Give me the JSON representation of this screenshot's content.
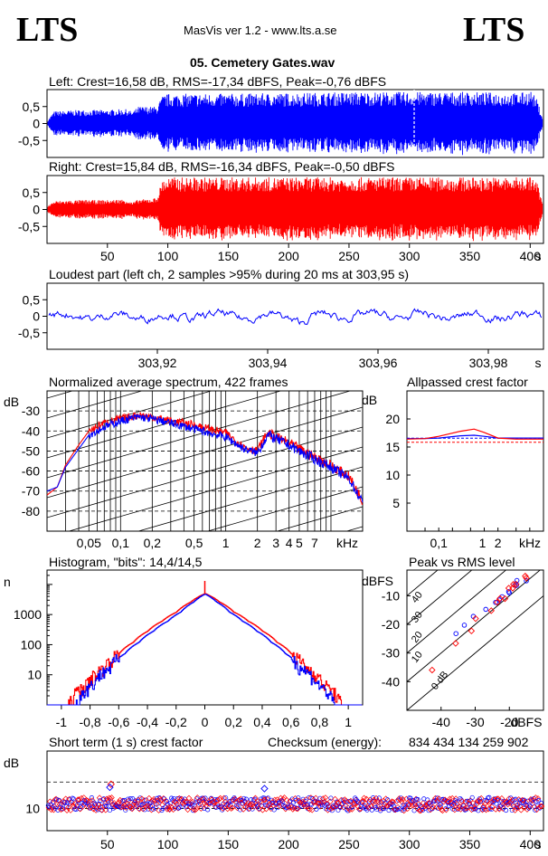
{
  "header": {
    "logo_left": "LTS",
    "logo_right": "LTS",
    "app_title": "MasVis ver 1.2 - www.lts.a.se",
    "file_title": "05. Cemetery Gates.wav"
  },
  "colors": {
    "left": "#0000ff",
    "right": "#ff0000",
    "axis": "#000000"
  },
  "chart_data": [
    {
      "id": "left_wave",
      "type": "area",
      "title": "Left: Crest=16,58 dB, RMS=-17,34 dBFS, Peak=-0,76 dBFS",
      "yticks": [
        "0,5",
        "0",
        "-0,5"
      ],
      "ylim": [
        -1,
        1
      ],
      "xlim": [
        0,
        411
      ],
      "envelope": {
        "x": [
          0,
          5,
          25,
          50,
          60,
          65,
          70,
          75,
          80,
          90,
          95,
          100,
          150,
          200,
          250,
          300,
          350,
          390,
          400,
          405,
          411
        ],
        "y": [
          0.1,
          0.36,
          0.4,
          0.4,
          0.42,
          0.42,
          0.35,
          0.5,
          0.5,
          0.5,
          0.82,
          0.88,
          0.88,
          0.9,
          0.93,
          0.93,
          0.93,
          0.9,
          0.97,
          0.7,
          0.0
        ]
      },
      "peak_marker_x": 303.95
    },
    {
      "id": "right_wave",
      "type": "area",
      "title": "Right: Crest=15,84 dB, RMS=-16,34 dBFS, Peak=-0,50 dBFS",
      "yticks": [
        "0,5",
        "0",
        "-0,5"
      ],
      "ylim": [
        -1,
        1
      ],
      "xlim": [
        0,
        411
      ],
      "xticks": [
        "50",
        "100",
        "150",
        "200",
        "250",
        "300",
        "350",
        "400"
      ],
      "xtick_values": [
        50,
        100,
        150,
        200,
        250,
        300,
        350,
        400
      ],
      "xunit": "s",
      "envelope": {
        "x": [
          0,
          5,
          25,
          50,
          60,
          65,
          70,
          75,
          80,
          90,
          95,
          100,
          150,
          200,
          250,
          300,
          350,
          390,
          400,
          405,
          411
        ],
        "y": [
          0.1,
          0.25,
          0.28,
          0.28,
          0.3,
          0.3,
          0.2,
          0.3,
          0.3,
          0.35,
          0.9,
          0.95,
          0.95,
          0.95,
          0.95,
          0.95,
          0.95,
          0.95,
          0.98,
          0.8,
          0.0
        ]
      }
    },
    {
      "id": "loudest",
      "type": "line",
      "title": "Loudest part (left  ch, 2 samples >95% during 20 ms at 303,95 s)",
      "yticks": [
        "0,5",
        "0",
        "-0,5"
      ],
      "ylim": [
        -1,
        1
      ],
      "xlim": [
        303.9,
        303.99
      ],
      "xticks": [
        "303,92",
        "303,94",
        "303,96",
        "303,98"
      ],
      "xtick_values": [
        303.92,
        303.94,
        303.96,
        303.98
      ],
      "xunit": "s"
    },
    {
      "id": "spectrum",
      "type": "line",
      "title": "Normalized average spectrum, 422 frames",
      "ylabel": "dB",
      "yticks": [
        "-30",
        "-40",
        "-50",
        "-60",
        "-70",
        "-80"
      ],
      "ytick_values": [
        -30,
        -40,
        -50,
        -60,
        -70,
        -80
      ],
      "ylim": [
        -90,
        -20
      ],
      "xscale": "log",
      "xticks": [
        "0,05",
        "0,1",
        "0,2",
        "0,5",
        "1",
        "2",
        "3",
        "4",
        "5",
        "7"
      ],
      "xtick_values": [
        0.05,
        0.1,
        0.2,
        0.5,
        1,
        2,
        3,
        4,
        5,
        7
      ],
      "xunit": "kHz",
      "series": [
        {
          "color": "#ff0000",
          "x": [
            0.02,
            0.025,
            0.03,
            0.04,
            0.05,
            0.07,
            0.1,
            0.15,
            0.2,
            0.3,
            0.5,
            0.7,
            1,
            1.5,
            2,
            2.5,
            3,
            4,
            5,
            7,
            10,
            15,
            20
          ],
          "y": [
            -72,
            -68,
            -57,
            -47,
            -40,
            -36,
            -34,
            -32,
            -33,
            -35,
            -37,
            -39,
            -41,
            -48,
            -50,
            -41,
            -43,
            -46,
            -49,
            -53,
            -57,
            -63,
            -75
          ]
        },
        {
          "color": "#0000ff",
          "x": [
            0.02,
            0.025,
            0.03,
            0.04,
            0.05,
            0.07,
            0.1,
            0.15,
            0.2,
            0.3,
            0.5,
            0.7,
            1,
            1.5,
            2,
            2.5,
            3,
            4,
            5,
            7,
            10,
            15,
            20
          ],
          "y": [
            -70,
            -68,
            -58,
            -49,
            -42,
            -38,
            -35,
            -33,
            -34,
            -36,
            -39,
            -41,
            -43,
            -49,
            -51,
            -42,
            -44,
            -47,
            -50,
            -54,
            -58,
            -64,
            -76
          ]
        }
      ]
    },
    {
      "id": "crest_factor",
      "type": "line",
      "title": "Allpassed crest factor",
      "ylabel": "dB",
      "yticks": [
        "20",
        "15",
        "10",
        "5"
      ],
      "ytick_values": [
        20,
        15,
        10,
        5
      ],
      "ylim": [
        0,
        25
      ],
      "xscale": "log",
      "xticks": [
        "0,1",
        "1",
        "2",
        "kHz"
      ],
      "xtick_values": [
        0.1,
        1,
        2
      ],
      "series": [
        {
          "color": "#0000ff",
          "x": [
            0.02,
            0.05,
            0.1,
            0.3,
            0.6,
            1,
            2,
            5,
            20
          ],
          "y": [
            16.5,
            16.5,
            16.6,
            17.0,
            17.1,
            16.9,
            16.6,
            16.6,
            16.6
          ]
        },
        {
          "color": "#ff0000",
          "x": [
            0.02,
            0.05,
            0.1,
            0.3,
            0.6,
            1,
            2,
            5,
            20
          ],
          "y": [
            16.4,
            16.5,
            16.9,
            17.8,
            18.2,
            17.6,
            16.6,
            16.4,
            16.4
          ]
        }
      ],
      "ref_lines": [
        {
          "color": "#0000ff",
          "y": 16.58
        },
        {
          "color": "#ff0000",
          "y": 15.84
        }
      ]
    },
    {
      "id": "histogram",
      "type": "line",
      "title": "Histogram, \"bits\": 14,4/14,5",
      "ylabel": "n",
      "yscale": "log",
      "yticks": [
        "1000",
        "100",
        "10"
      ],
      "ytick_values": [
        1000,
        100,
        10
      ],
      "ylim": [
        1,
        30000
      ],
      "xlim": [
        -1.1,
        1.1
      ],
      "xticks": [
        "-1",
        "-0,8",
        "-0,6",
        "-0,4",
        "-0,2",
        "0",
        "0,2",
        "0,4",
        "0,6",
        "0,8",
        "1"
      ],
      "xtick_values": [
        -1,
        -0.8,
        -0.6,
        -0.4,
        -0.2,
        0,
        0.2,
        0.4,
        0.6,
        0.8,
        1
      ],
      "series": [
        {
          "color": "#ff0000",
          "x": [
            -0.95,
            -0.82,
            -0.7,
            -0.6,
            -0.5,
            -0.4,
            -0.3,
            -0.2,
            -0.1,
            0,
            0.1,
            0.2,
            0.3,
            0.4,
            0.5,
            0.6,
            0.7,
            0.82,
            0.95
          ],
          "y": [
            1,
            5,
            18,
            50,
            120,
            280,
            600,
            1200,
            2600,
            5000,
            2600,
            1200,
            600,
            280,
            120,
            50,
            18,
            5,
            1
          ]
        },
        {
          "color": "#0000ff",
          "x": [
            -0.9,
            -0.78,
            -0.66,
            -0.56,
            -0.46,
            -0.36,
            -0.26,
            -0.17,
            -0.08,
            0,
            0.08,
            0.17,
            0.26,
            0.36,
            0.46,
            0.56,
            0.66,
            0.78,
            0.9
          ],
          "y": [
            1,
            5,
            18,
            50,
            120,
            280,
            600,
            1200,
            2600,
            4800,
            2600,
            1200,
            600,
            280,
            120,
            50,
            18,
            5,
            1
          ]
        }
      ]
    },
    {
      "id": "peak_rms",
      "type": "scatter",
      "title": "Peak vs RMS level",
      "ylabel": "dBFS",
      "xunit": "dBFS",
      "yticks": [
        "-10",
        "-20",
        "-30",
        "-40"
      ],
      "ytick_values": [
        -10,
        -20,
        -30,
        -40
      ],
      "xticks": [
        "-40",
        "-30",
        "-20"
      ],
      "xtick_values": [
        -40,
        -30,
        -20
      ],
      "xlim": [
        -50,
        -10
      ],
      "ylim": [
        -50,
        -1
      ],
      "diagonals": [
        "40",
        "30",
        "20",
        "10",
        "0 dB"
      ],
      "diagonal_values": [
        40,
        30,
        20,
        10,
        0
      ],
      "series": [
        {
          "color": "#0000ff",
          "x": [
            -16,
            -17,
            -18,
            -19,
            -20,
            -21,
            -22,
            -23,
            -25,
            -27,
            -30,
            -33,
            -36
          ],
          "y": [
            -4,
            -5,
            -6,
            -7,
            -8,
            -9,
            -10,
            -11,
            -13,
            -15,
            -18,
            -21,
            -24
          ]
        },
        {
          "color": "#ff0000",
          "x": [
            -15,
            -16,
            -17,
            -18,
            -19,
            -20,
            -21,
            -22,
            -24,
            -26,
            -29,
            -32,
            -35,
            -42
          ],
          "y": [
            -3,
            -4,
            -5,
            -6,
            -7,
            -8,
            -10,
            -11,
            -13,
            -15,
            -18,
            -22,
            -26,
            -35
          ]
        }
      ]
    },
    {
      "id": "short_term_crest",
      "type": "scatter",
      "title": "Short term (1 s) crest factor",
      "ylabel": "dB",
      "checksum_label": "Checksum (energy):",
      "checksum_value": "834 434 134 259 902",
      "yticks": [
        "10"
      ],
      "ytick_values": [
        10
      ],
      "ylim": [
        5,
        23
      ],
      "xlim": [
        0,
        411
      ],
      "xticks": [
        "50",
        "100",
        "150",
        "200",
        "250",
        "300",
        "350",
        "400"
      ],
      "xtick_values": [
        50,
        100,
        150,
        200,
        250,
        300,
        350,
        400
      ],
      "xunit": "s",
      "mean_level": 11,
      "spread": 1.5,
      "outliers": [
        {
          "x": 53,
          "y": 15.5,
          "color": "#ff0000"
        },
        {
          "x": 180,
          "y": 14.5,
          "color": "#0000ff"
        },
        {
          "x": 52,
          "y": 14.8,
          "color": "#0000ff"
        }
      ],
      "ref_lines": [
        {
          "y": 16
        },
        {
          "y": 10
        }
      ]
    }
  ]
}
